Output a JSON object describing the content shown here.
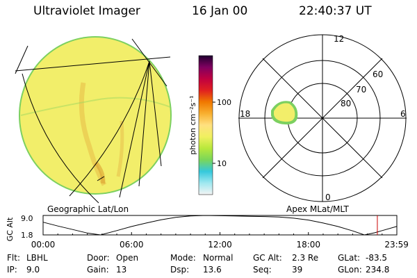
{
  "header": {
    "title": "Ultraviolet Imager",
    "date": "16 Jan 00",
    "time": "22:40:37 UT"
  },
  "colorbar": {
    "unit_label": "photon cm⁻²s⁻¹",
    "ticks": [
      "100",
      "10"
    ],
    "ticks_value": [
      100,
      10
    ],
    "stops": [
      "#f4f4f4",
      "#9fe8f0",
      "#35c8dc",
      "#7ad65a",
      "#b8e83c",
      "#f0f060",
      "#ffe080",
      "#f8b030",
      "#f07800",
      "#e02020",
      "#c00040",
      "#800060",
      "#200030"
    ]
  },
  "geo_panel": {
    "label": "Geographic Lat/Lon",
    "fill_color": "#f2ee6a",
    "edge_color": "#7cd060"
  },
  "polar_panel": {
    "label": "Apex MLat/MLT",
    "mlt_labels": {
      "top": "12",
      "left": "18",
      "right": "6",
      "bottom": "0"
    },
    "lat_labels": [
      "60",
      "70",
      "80"
    ],
    "lat_values": [
      60,
      70,
      80
    ]
  },
  "timeline": {
    "ylabel": "GC Alt",
    "ytick_top": "9.0",
    "ytick_bottom": "1.8",
    "ylim": [
      1.8,
      9.0
    ],
    "xticks": [
      "00:00",
      "06:00",
      "12:00",
      "18:00",
      "23:59"
    ],
    "xtick_hours": [
      0,
      6,
      12,
      18,
      23.983
    ],
    "current_time_hours": 22.677,
    "orbit": {
      "x": [
        0,
        1,
        2,
        3,
        3.9,
        5,
        6,
        7,
        8,
        9,
        10,
        11,
        12,
        13,
        14,
        15,
        16,
        17,
        18,
        19,
        20,
        21,
        21.8,
        22.5,
        23,
        23.983
      ],
      "y": [
        6.5,
        5.1,
        3.8,
        2.5,
        1.8,
        3.4,
        4.9,
        6.2,
        7.4,
        8.3,
        8.8,
        9.0,
        8.9,
        8.8,
        8.7,
        8.6,
        8.4,
        8.0,
        7.3,
        6.2,
        4.9,
        3.3,
        1.8,
        2.6,
        3.4,
        4.9
      ]
    }
  },
  "info": {
    "rows": [
      [
        {
          "key": "Flt:",
          "val": "LBHL"
        },
        {
          "key": "Door:",
          "val": "Open"
        },
        {
          "key": "Mode:",
          "val": "Normal"
        },
        {
          "key": "GC Alt:",
          "val": "2.3 Re"
        },
        {
          "key": "GLat:",
          "val": "-83.5"
        }
      ],
      [
        {
          "key": "IP:",
          "val": "9.0"
        },
        {
          "key": "Gain:",
          "val": "13"
        },
        {
          "key": "Dsp:",
          "val": "13.6"
        },
        {
          "key": "Seq:",
          "val": "39"
        },
        {
          "key": "GLon:",
          "val": "234.8"
        }
      ]
    ]
  }
}
